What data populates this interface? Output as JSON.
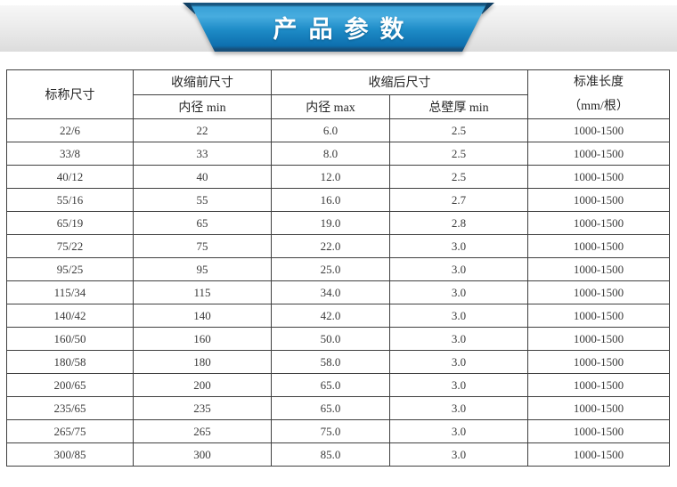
{
  "banner": {
    "title": "产品参数"
  },
  "colors": {
    "banner_blue": "#1e8cc7",
    "banner_dark_fold": "#0f3f63",
    "strip_gray": "#e5e5e5",
    "table_border": "#3f3f3f"
  },
  "table": {
    "headers": {
      "nominal": "标称尺寸",
      "before_group": "收缩前尺寸",
      "before_sub": "内径 min",
      "after_group": "收缩后尺寸",
      "after_sub_1": "内径 max",
      "after_sub_2": "总壁厚 min",
      "length_line1": "标准长度",
      "length_line2": "（mm/根）"
    },
    "rows": [
      [
        "22/6",
        "22",
        "6.0",
        "2.5",
        "1000-1500"
      ],
      [
        "33/8",
        "33",
        "8.0",
        "2.5",
        "1000-1500"
      ],
      [
        "40/12",
        "40",
        "12.0",
        "2.5",
        "1000-1500"
      ],
      [
        "55/16",
        "55",
        "16.0",
        "2.7",
        "1000-1500"
      ],
      [
        "65/19",
        "65",
        "19.0",
        "2.8",
        "1000-1500"
      ],
      [
        "75/22",
        "75",
        "22.0",
        "3.0",
        "1000-1500"
      ],
      [
        "95/25",
        "95",
        "25.0",
        "3.0",
        "1000-1500"
      ],
      [
        "115/34",
        "115",
        "34.0",
        "3.0",
        "1000-1500"
      ],
      [
        "140/42",
        "140",
        "42.0",
        "3.0",
        "1000-1500"
      ],
      [
        "160/50",
        "160",
        "50.0",
        "3.0",
        "1000-1500"
      ],
      [
        "180/58",
        "180",
        "58.0",
        "3.0",
        "1000-1500"
      ],
      [
        "200/65",
        "200",
        "65.0",
        "3.0",
        "1000-1500"
      ],
      [
        "235/65",
        "235",
        "65.0",
        "3.0",
        "1000-1500"
      ],
      [
        "265/75",
        "265",
        "75.0",
        "3.0",
        "1000-1500"
      ],
      [
        "300/85",
        "300",
        "85.0",
        "3.0",
        "1000-1500"
      ]
    ]
  }
}
